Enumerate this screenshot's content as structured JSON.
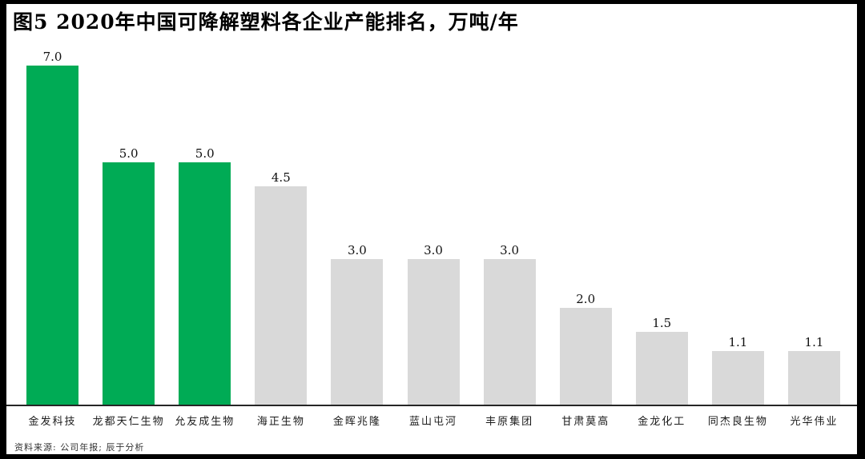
{
  "title": "图5 2020年中国可降解塑料各企业产能排名，万吨/年",
  "source_note": "资料来源: 公司年报; 辰于分析",
  "colors": {
    "highlight_green": "#00AB55",
    "bar_gray": "#D9D9D9",
    "frame_black": "#000000",
    "axis_dark": "#262626"
  },
  "chart_data": {
    "type": "bar",
    "title": "图5 2020年中国可降解塑料各企业产能排名，万吨/年",
    "unit": "万吨/年",
    "categories": [
      "金发科技",
      "龙都天仁生物",
      "允友成生物",
      "海正生物",
      "金晖兆隆",
      "蓝山屯河",
      "丰原集团",
      "甘肃莫高",
      "金龙化工",
      "同杰良生物",
      "光华伟业"
    ],
    "values": [
      7.0,
      5.0,
      5.0,
      4.5,
      3.0,
      3.0,
      3.0,
      2.0,
      1.5,
      1.1,
      1.1
    ],
    "value_labels": [
      "7.0",
      "5.0",
      "5.0",
      "4.5",
      "3.0",
      "3.0",
      "3.0",
      "2.0",
      "1.5",
      "1.1",
      "1.1"
    ],
    "highlighted": [
      true,
      true,
      true,
      false,
      false,
      false,
      false,
      false,
      false,
      false,
      false
    ],
    "xlabel": "",
    "ylabel": "",
    "ylim": [
      0,
      7.5
    ],
    "grid": false,
    "legend_position": "none"
  }
}
